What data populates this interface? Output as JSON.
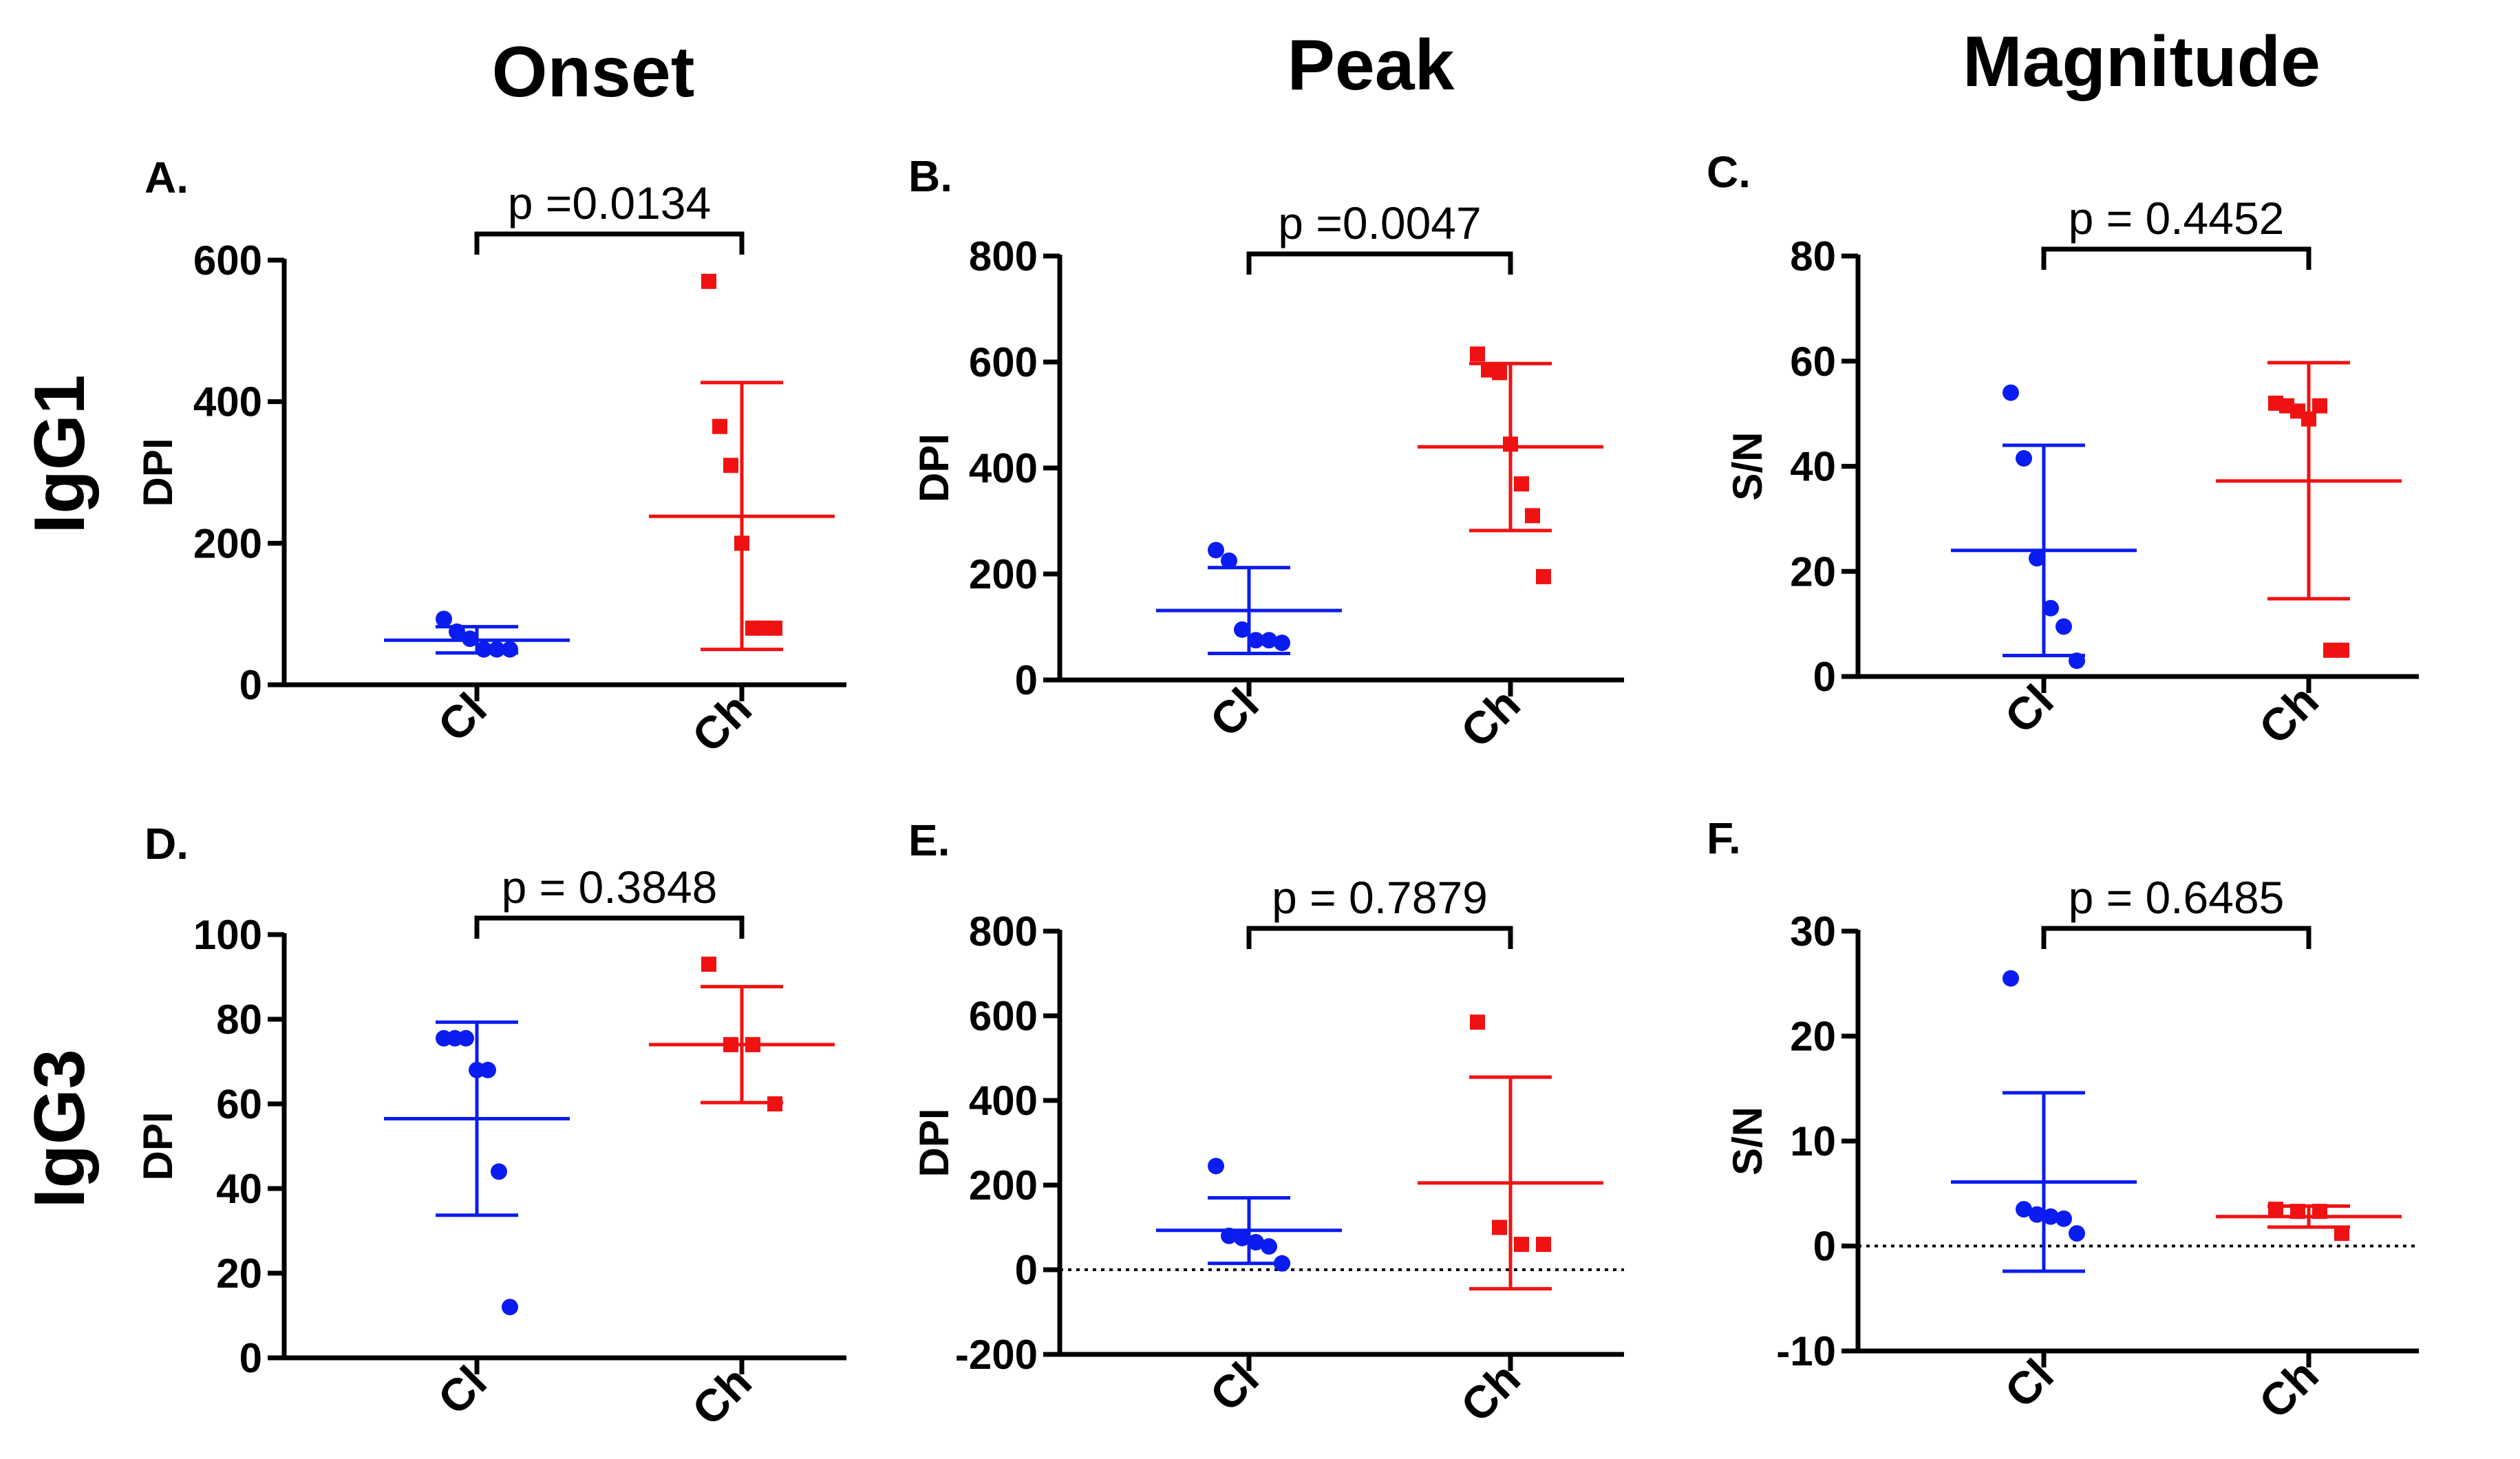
{
  "figure": {
    "column_titles": [
      "Onset",
      "Peak",
      "Magnitude"
    ],
    "row_titles": [
      "IgG1",
      "IgG3"
    ]
  },
  "colors": {
    "Cl": "#0b1cf0",
    "Ch": "#f01212",
    "axis": "#000000"
  },
  "chart_data": [
    {
      "type": "scatter",
      "panel": "A.",
      "ylabel": "DPI",
      "ylim": [
        0,
        600
      ],
      "yticks": [
        0,
        200,
        400,
        600
      ],
      "categories": [
        "Cl",
        "Ch"
      ],
      "p_value": "p =0.0134",
      "zero_line": false,
      "series": [
        {
          "name": "Cl",
          "marker": "circle",
          "values": [
            93,
            75,
            65,
            50,
            50,
            50
          ],
          "mean": 63,
          "sd_upper": 82,
          "sd_lower": 45
        },
        {
          "name": "Ch",
          "marker": "square",
          "values": [
            570,
            365,
            310,
            200,
            80,
            80,
            80
          ],
          "mean": 238,
          "sd_upper": 427,
          "sd_lower": 50
        }
      ]
    },
    {
      "type": "scatter",
      "panel": "B.",
      "ylabel": "DPI",
      "ylim": [
        0,
        800
      ],
      "yticks": [
        0,
        200,
        400,
        600,
        800
      ],
      "categories": [
        "Cl",
        "Ch"
      ],
      "p_value": "p =0.0047",
      "zero_line": false,
      "series": [
        {
          "name": "Cl",
          "marker": "circle",
          "values": [
            245,
            225,
            95,
            75,
            75,
            70
          ],
          "mean": 131,
          "sd_upper": 212,
          "sd_lower": 50
        },
        {
          "name": "Ch",
          "marker": "square",
          "values": [
            615,
            585,
            580,
            445,
            370,
            310,
            195
          ],
          "mean": 440,
          "sd_upper": 597,
          "sd_lower": 282
        }
      ]
    },
    {
      "type": "scatter",
      "panel": "C.",
      "ylabel": "S/N",
      "ylim": [
        0,
        80
      ],
      "yticks": [
        0,
        20,
        40,
        60,
        80
      ],
      "categories": [
        "Cl",
        "Ch"
      ],
      "p_value": "p = 0.4452",
      "zero_line": false,
      "series": [
        {
          "name": "Cl",
          "marker": "circle",
          "values": [
            54,
            41.5,
            22.5,
            13,
            9.5,
            3
          ],
          "mean": 24,
          "sd_upper": 44,
          "sd_lower": 4
        },
        {
          "name": "Ch",
          "marker": "square",
          "values": [
            52,
            51.5,
            50.5,
            49,
            51.5,
            5,
            5
          ],
          "mean": 37.2,
          "sd_upper": 59.7,
          "sd_lower": 14.8
        }
      ]
    },
    {
      "type": "scatter",
      "panel": "D.",
      "ylabel": "DPI",
      "ylim": [
        0,
        100
      ],
      "yticks": [
        0,
        20,
        40,
        60,
        80,
        100
      ],
      "categories": [
        "Cl",
        "Ch"
      ],
      "p_value": "p = 0.3848",
      "zero_line": false,
      "series": [
        {
          "name": "Cl",
          "marker": "circle",
          "values": [
            75.5,
            75.5,
            75.5,
            68,
            68,
            44,
            12
          ],
          "mean": 56.5,
          "sd_upper": 79.3,
          "sd_lower": 33.7
        },
        {
          "name": "Ch",
          "marker": "square",
          "values": [
            93,
            74,
            74,
            60
          ],
          "mean": 74,
          "sd_upper": 87.7,
          "sd_lower": 60.3
        }
      ]
    },
    {
      "type": "scatter",
      "panel": "E.",
      "ylabel": "DPI",
      "ylim": [
        -200,
        800
      ],
      "yticks": [
        -200,
        0,
        200,
        400,
        600,
        800
      ],
      "categories": [
        "Cl",
        "Ch"
      ],
      "p_value": "p = 0.7879",
      "zero_line": true,
      "series": [
        {
          "name": "Cl",
          "marker": "circle",
          "values": [
            245,
            80,
            75,
            65,
            55,
            15
          ],
          "mean": 93,
          "sd_upper": 170,
          "sd_lower": 15
        },
        {
          "name": "Ch",
          "marker": "square",
          "values": [
            585,
            100,
            60,
            60
          ],
          "mean": 205,
          "sd_upper": 455,
          "sd_lower": -45
        }
      ]
    },
    {
      "type": "scatter",
      "panel": "F.",
      "ylabel": "S/N",
      "ylim": [
        -10,
        30
      ],
      "yticks": [
        -10,
        0,
        10,
        20,
        30
      ],
      "categories": [
        "Cl",
        "Ch"
      ],
      "p_value": "p = 0.6485",
      "zero_line": true,
      "series": [
        {
          "name": "Cl",
          "marker": "circle",
          "values": [
            25.5,
            3.5,
            3,
            2.8,
            2.6,
            1.2
          ],
          "mean": 6.1,
          "sd_upper": 14.6,
          "sd_lower": -2.4
        },
        {
          "name": "Ch",
          "marker": "square",
          "values": [
            3.5,
            3.3,
            3.3,
            1.2
          ],
          "mean": 2.8,
          "sd_upper": 3.8,
          "sd_lower": 1.8
        }
      ]
    }
  ]
}
